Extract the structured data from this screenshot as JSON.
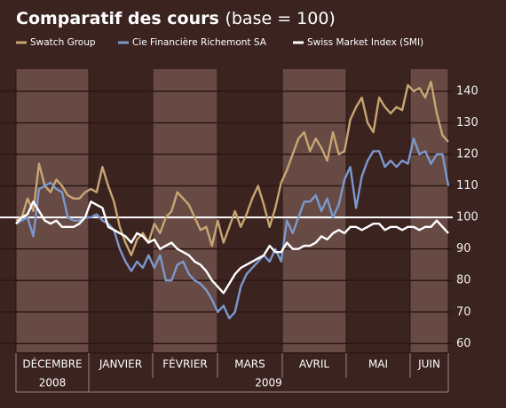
{
  "chart_data": {
    "type": "line",
    "title": "Comparatif des cours",
    "subtitle": "(base = 100)",
    "months": [
      "DÉCEMBRE",
      "JANVIER",
      "FÉVRIER",
      "MARS",
      "AVRIL",
      "MAI",
      "JUIN"
    ],
    "years": [
      "2008",
      "2009"
    ],
    "ylim": [
      57,
      147
    ],
    "yticks": [
      60,
      70,
      80,
      90,
      100,
      110,
      120,
      130,
      140
    ],
    "grid": true,
    "reference_line": 100,
    "series": [
      {
        "name": "Swatch Group",
        "color": "#c7a673",
        "values": [
          99,
          100,
          106,
          102,
          117,
          110,
          108,
          112,
          110,
          107,
          106,
          106,
          108,
          109,
          108,
          116,
          110,
          105,
          97,
          92,
          88,
          93,
          95,
          92,
          98,
          95,
          100,
          102,
          108,
          106,
          104,
          100,
          96,
          97,
          91,
          99,
          92,
          97,
          102,
          97,
          101,
          106,
          110,
          104,
          97,
          103,
          111,
          115,
          120,
          125,
          127,
          121,
          125,
          122,
          118,
          127,
          120,
          121,
          131,
          135,
          138,
          130,
          127,
          138,
          135,
          133,
          135,
          134,
          142,
          140,
          141,
          138,
          143,
          133,
          126,
          124
        ]
      },
      {
        "name": "Cie Financière Richemont SA",
        "color": "#7b98cc",
        "values": [
          98,
          99,
          100,
          94,
          109,
          110,
          111,
          109,
          108,
          100,
          99,
          99,
          100,
          100,
          101,
          99,
          98,
          96,
          90,
          86,
          83,
          86,
          84,
          88,
          84,
          88,
          80,
          80,
          85,
          86,
          82,
          80,
          79,
          77,
          74,
          70,
          72,
          68,
          70,
          78,
          82,
          84,
          86,
          88,
          86,
          90,
          86,
          99,
          95,
          100,
          105,
          105,
          107,
          102,
          106,
          100,
          104,
          112,
          116,
          103,
          113,
          118,
          121,
          121,
          116,
          118,
          116,
          118,
          117,
          125,
          120,
          121,
          117,
          120,
          120,
          110
        ]
      },
      {
        "name": "Swiss Market Index (SMI)",
        "color": "#ffffff",
        "values": [
          98,
          100,
          101,
          105,
          102,
          99,
          98,
          99,
          97,
          97,
          97,
          98,
          100,
          105,
          104,
          103,
          97,
          96,
          95,
          94,
          92,
          95,
          94,
          92,
          93,
          90,
          91,
          92,
          90,
          89,
          88,
          86,
          85,
          83,
          80,
          78,
          76,
          79,
          82,
          84,
          85,
          86,
          87,
          88,
          91,
          89,
          89,
          92,
          90,
          90,
          91,
          91,
          92,
          94,
          93,
          95,
          96,
          95,
          97,
          97,
          96,
          97,
          98,
          98,
          96,
          97,
          97,
          96,
          97,
          97,
          96,
          97,
          97,
          99,
          97,
          95
        ]
      }
    ]
  }
}
